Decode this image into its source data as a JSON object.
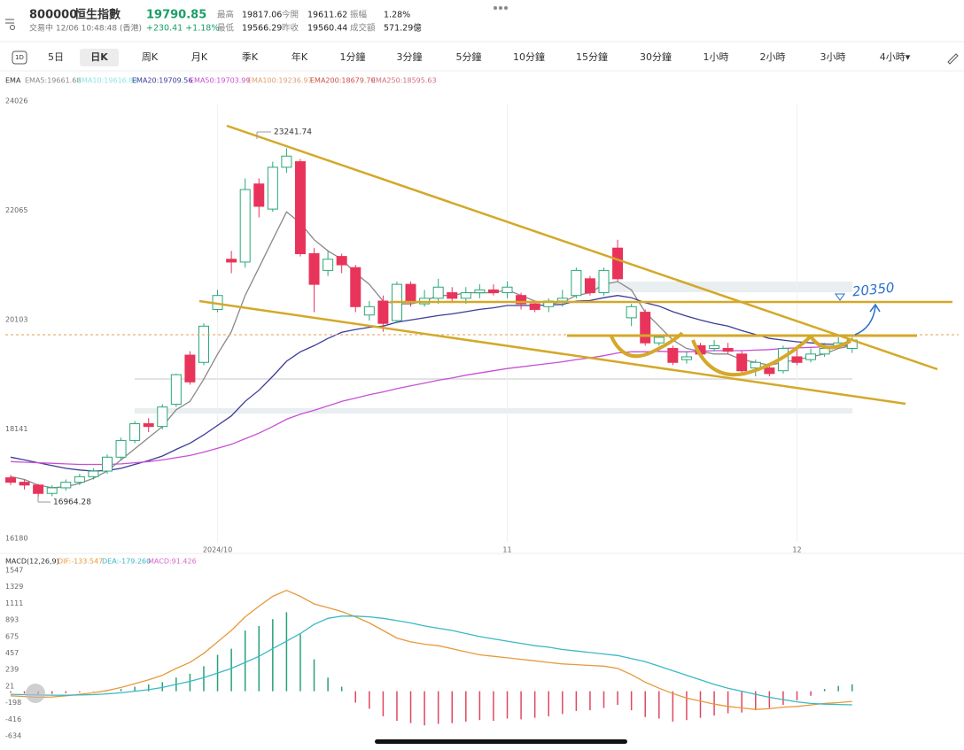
{
  "header": {
    "code": "800000",
    "name": "恒生指數",
    "price": "19790.85",
    "status": "交易中 12/06 10:48:48 (香港)",
    "change": "+230.41 +1.18%",
    "stats": [
      {
        "label": "最高",
        "value": "19817.06"
      },
      {
        "label": "今開",
        "value": "19611.62"
      },
      {
        "label": "振幅",
        "value": "1.28%"
      },
      {
        "label": "最低",
        "value": "19566.29"
      },
      {
        "label": "昨收",
        "value": "19560.44"
      },
      {
        "label": "成交額",
        "value": "571.29億"
      }
    ]
  },
  "tabs": [
    "1D",
    "5日",
    "日K",
    "周K",
    "月K",
    "季K",
    "年K",
    "1分鐘",
    "3分鐘",
    "5分鐘",
    "10分鐘",
    "15分鐘",
    "30分鐘",
    "1小時",
    "2小時",
    "3小時",
    "4小時▾"
  ],
  "chart_data": [
    {
      "type": "candlestick",
      "legend": [
        {
          "text": "EMA",
          "color": "#333333"
        },
        {
          "text": "EMA5:19661.68",
          "color": "#888888"
        },
        {
          "text": "EMA10:19616.84",
          "color": "#8fe6e0"
        },
        {
          "text": "EMA20:19709.56",
          "color": "#3b3b9a"
        },
        {
          "text": "EMA50:19703.99",
          "color": "#c94fd6"
        },
        {
          "text": "EMA100:19236.97",
          "color": "#e0a070"
        },
        {
          "text": "EMA200:18679.70",
          "color": "#d0504a"
        },
        {
          "text": "EMA250:18595.63",
          "color": "#d07080"
        }
      ],
      "categories": [
        null,
        null,
        null,
        null,
        null,
        null,
        null,
        null,
        null,
        null,
        null,
        null,
        null,
        null,
        null,
        "2024/10",
        null,
        null,
        null,
        null,
        null,
        null,
        null,
        null,
        null,
        null,
        null,
        null,
        null,
        null,
        null,
        null,
        null,
        null,
        null,
        null,
        "11",
        null,
        null,
        null,
        null,
        null,
        null,
        null,
        null,
        null,
        null,
        null,
        null,
        null,
        null,
        null,
        null,
        null,
        null,
        null,
        null,
        "12",
        null,
        null,
        null,
        null
      ],
      "open": [
        17330,
        17250,
        17200,
        17050,
        17150,
        17250,
        17350,
        17450,
        17700,
        18000,
        18300,
        18250,
        18650,
        19530,
        19400,
        20350,
        21250,
        21200,
        22600,
        22150,
        22900,
        23000,
        21350,
        21050,
        21300,
        21100,
        20250,
        20500,
        20150,
        20800,
        20450,
        20550,
        20650,
        20550,
        20650,
        20700,
        20650,
        20600,
        20450,
        20400,
        20500,
        20600,
        20900,
        20650,
        21450,
        20200,
        20300,
        19750,
        19650,
        19450,
        19700,
        19650,
        19650,
        19550,
        19300,
        19300,
        19250,
        19500,
        19450,
        19550,
        19700,
        19650
      ],
      "close": [
        17250,
        17200,
        17050,
        17150,
        17250,
        17350,
        17450,
        17700,
        18000,
        18300,
        18250,
        18600,
        19180,
        19050,
        20050,
        20600,
        21200,
        22500,
        22200,
        22900,
        23100,
        21350,
        20800,
        21250,
        21150,
        20400,
        20400,
        20100,
        20800,
        20500,
        20550,
        20750,
        20550,
        20650,
        20700,
        20650,
        20750,
        20450,
        20350,
        20500,
        20550,
        21050,
        20650,
        21050,
        20900,
        20400,
        19750,
        19850,
        19400,
        19500,
        19550,
        19700,
        19600,
        19250,
        19400,
        19200,
        19650,
        19400,
        19550,
        19650,
        19750,
        19800
      ],
      "high": [
        17380,
        17300,
        17220,
        17200,
        17300,
        17400,
        17500,
        17750,
        18050,
        18350,
        18400,
        18650,
        19200,
        19600,
        20100,
        20700,
        21400,
        22700,
        22700,
        23000,
        23241,
        23050,
        21450,
        21400,
        21350,
        21150,
        20500,
        20600,
        20850,
        20850,
        20700,
        20900,
        20750,
        20750,
        20800,
        20800,
        20850,
        20650,
        20500,
        20550,
        20700,
        21100,
        20950,
        21100,
        21600,
        20450,
        20350,
        19900,
        19700,
        19600,
        19750,
        19800,
        19750,
        19600,
        19450,
        19350,
        19700,
        19650,
        19650,
        19750,
        19850,
        19850
      ],
      "low": [
        17200,
        17120,
        16964,
        17000,
        17100,
        17200,
        17300,
        17400,
        17650,
        17950,
        18150,
        18200,
        18600,
        19000,
        19350,
        20300,
        21000,
        21100,
        22000,
        22100,
        22800,
        21300,
        20300,
        20950,
        21000,
        20300,
        20150,
        19950,
        20100,
        20400,
        20400,
        20450,
        20500,
        20450,
        20550,
        20600,
        20550,
        20350,
        20300,
        20300,
        20400,
        20550,
        20600,
        20600,
        20850,
        20050,
        19700,
        19700,
        19350,
        19380,
        19500,
        19600,
        19550,
        19200,
        19150,
        19150,
        19200,
        19350,
        19400,
        19500,
        19650,
        19570
      ],
      "up_color": "#2aa876",
      "down_color": "#e8345a",
      "series": [
        {
          "color": "#888888",
          "values": [
            17350,
            17300,
            17200,
            17150,
            17170,
            17230,
            17320,
            17450,
            17650,
            17850,
            18050,
            18250,
            18550,
            18700,
            19100,
            19550,
            19950,
            20600,
            21100,
            21600,
            22100,
            21900,
            21600,
            21400,
            21250,
            21000,
            20800,
            20500,
            20450,
            20450,
            20500,
            20600,
            20600,
            20650,
            20650,
            20650,
            20700,
            20600,
            20500,
            20450,
            20480,
            20600,
            20650,
            20800,
            20850,
            20700,
            20300,
            20050,
            19800,
            19650,
            19600,
            19550,
            19550,
            19450,
            19400,
            19350,
            19400,
            19450,
            19500,
            19550,
            19650,
            19700
          ]
        },
        {
          "color": "#3b3b9a",
          "values": [
            17700,
            17650,
            17600,
            17550,
            17500,
            17470,
            17450,
            17460,
            17500,
            17570,
            17640,
            17720,
            17840,
            17950,
            18100,
            18270,
            18440,
            18700,
            18900,
            19150,
            19420,
            19590,
            19700,
            19830,
            19940,
            19990,
            20030,
            20050,
            20120,
            20160,
            20200,
            20240,
            20270,
            20310,
            20350,
            20380,
            20420,
            20420,
            20420,
            20430,
            20440,
            20500,
            20510,
            20560,
            20600,
            20560,
            20470,
            20410,
            20310,
            20230,
            20160,
            20100,
            20050,
            19970,
            19900,
            19830,
            19800,
            19770,
            19750,
            19730,
            19720,
            19710
          ]
        },
        {
          "color": "#c94fd6",
          "values": [
            17620,
            17610,
            17600,
            17590,
            17580,
            17570,
            17570,
            17570,
            17580,
            17600,
            17620,
            17650,
            17690,
            17730,
            17790,
            17860,
            17930,
            18030,
            18130,
            18250,
            18380,
            18470,
            18540,
            18620,
            18700,
            18760,
            18820,
            18870,
            18930,
            18980,
            19030,
            19080,
            19120,
            19170,
            19210,
            19250,
            19290,
            19320,
            19350,
            19380,
            19410,
            19450,
            19480,
            19520,
            19570,
            19590,
            19590,
            19600,
            19590,
            19590,
            19600,
            19610,
            19610,
            19610,
            19620,
            19630,
            19650,
            19660,
            19670,
            19680,
            19690,
            19704
          ]
        }
      ],
      "ylim": [
        16180,
        24026
      ],
      "yticks": [
        16180,
        18141,
        20103,
        22065,
        24026
      ],
      "max_label": "23241.74",
      "min_label": "16964.28",
      "annotation": "20350"
    },
    {
      "type": "macd",
      "legend": [
        {
          "text": "MACD(12,26,9)",
          "color": "#333333"
        },
        {
          "text": "DIF:-133.547",
          "color": "#e69a3c"
        },
        {
          "text": "DEA:-179.260",
          "color": "#3bb8c4"
        },
        {
          "text": "MACD:91.426",
          "color": "#d868c8"
        }
      ],
      "values": [
        -20,
        -30,
        -40,
        -35,
        -25,
        -15,
        -5,
        10,
        30,
        60,
        90,
        120,
        180,
        230,
        330,
        480,
        560,
        800,
        860,
        950,
        1040,
        750,
        420,
        180,
        60,
        -150,
        -230,
        -330,
        -390,
        -420,
        -450,
        -430,
        -420,
        -400,
        -380,
        -390,
        -360,
        -370,
        -350,
        -330,
        -300,
        -260,
        -250,
        -220,
        -180,
        -250,
        -340,
        -360,
        -400,
        -380,
        -350,
        -320,
        -290,
        -280,
        -250,
        -220,
        -180,
        -120,
        -60,
        30,
        70,
        91
      ],
      "up_color": "#26a17a",
      "down_color": "#e0475f",
      "series": [
        {
          "color": "#e69a3c",
          "values": [
            -60,
            -70,
            -80,
            -75,
            -60,
            -40,
            -20,
            10,
            50,
            100,
            150,
            210,
            300,
            380,
            500,
            650,
            800,
            980,
            1120,
            1250,
            1329,
            1250,
            1150,
            1100,
            1050,
            980,
            900,
            800,
            700,
            650,
            620,
            600,
            560,
            520,
            480,
            460,
            440,
            420,
            400,
            380,
            360,
            350,
            340,
            330,
            300,
            220,
            120,
            40,
            -30,
            -90,
            -130,
            -170,
            -200,
            -220,
            -240,
            -230,
            -210,
            -200,
            -180,
            -160,
            -150,
            -134
          ]
        },
        {
          "color": "#3bb8c4",
          "values": [
            -40,
            -45,
            -50,
            -52,
            -53,
            -50,
            -45,
            -35,
            -20,
            0,
            20,
            50,
            90,
            130,
            180,
            240,
            300,
            380,
            460,
            560,
            660,
            760,
            880,
            960,
            990,
            990,
            980,
            960,
            930,
            900,
            860,
            830,
            800,
            760,
            720,
            690,
            660,
            630,
            600,
            580,
            550,
            530,
            510,
            490,
            470,
            430,
            390,
            330,
            270,
            210,
            150,
            90,
            40,
            0,
            -40,
            -80,
            -110,
            -140,
            -160,
            -170,
            -175,
            -179
          ]
        }
      ],
      "ylim": [
        -634,
        1547
      ],
      "yticks": [
        -634,
        -416,
        -198,
        21,
        239,
        457,
        675,
        893,
        1111,
        1329,
        1547
      ]
    }
  ]
}
